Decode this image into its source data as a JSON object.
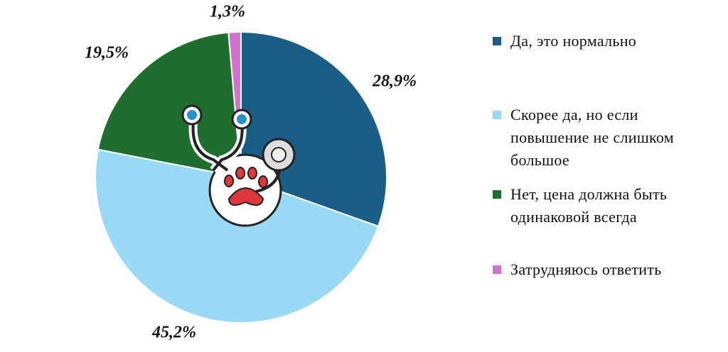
{
  "chart_data": {
    "type": "pie",
    "categories": [
      "Да, это нормально",
      "Скорее да, но если повышение не слишком большое",
      "Нет, цена должна быть одинаковой всегда",
      "Затрудняюсь ответить"
    ],
    "values": [
      28.9,
      45.2,
      19.5,
      1.3
    ],
    "value_labels": [
      "28,9%",
      "45,2%",
      "19,5%",
      "1,3%"
    ],
    "colors": [
      "#1a5e87",
      "#9ad9f5",
      "#1e6e2e",
      "#d36fcf"
    ]
  }
}
